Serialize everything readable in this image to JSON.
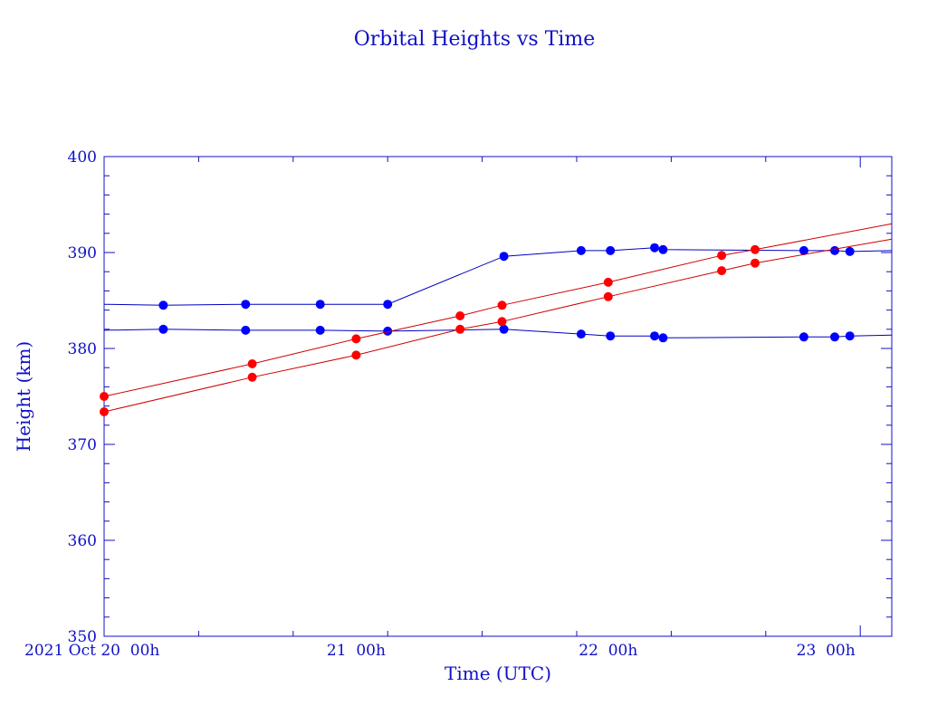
{
  "chart_data": {
    "type": "line",
    "title": "Orbital Heights vs Time",
    "xlabel": "Time (UTC)",
    "ylabel": "Height (km)",
    "x_unit": "hours since 2021 Oct 20 00h",
    "xlim": [
      -1.0,
      24.0
    ],
    "ylim": [
      350,
      400
    ],
    "y_ticks": [
      350,
      360,
      370,
      380,
      390,
      400
    ],
    "x_tick_labels": [
      {
        "x": -1.0,
        "label": "2021 Oct 20  00h"
      },
      {
        "x": 7.0,
        "label": "21  00h"
      },
      {
        "x": 15.0,
        "label": "22  00h"
      },
      {
        "x": 23.0,
        "label": "23  00h"
      }
    ],
    "grid": false,
    "colors": {
      "axes": "#1010c8",
      "series_blue": "#0000ff",
      "series_red": "#ff0000",
      "line_blue": "#0000c0",
      "line_red": "#d00000"
    },
    "series": [
      {
        "name": "blue-upper",
        "color": "#0000ff",
        "line_color": "#0000c0",
        "x": [
          -1.0,
          0.88,
          3.49,
          5.86,
          8.0,
          11.69,
          14.14,
          15.07,
          16.47,
          16.74,
          21.21,
          22.19,
          22.67,
          24.0
        ],
        "y": [
          384.6,
          384.5,
          384.6,
          384.6,
          384.6,
          389.6,
          390.2,
          390.2,
          390.5,
          390.3,
          390.2,
          390.2,
          390.1,
          390.2
        ],
        "markers": [
          false,
          true,
          true,
          true,
          true,
          true,
          true,
          true,
          true,
          true,
          true,
          true,
          true,
          false
        ]
      },
      {
        "name": "blue-lower",
        "color": "#0000ff",
        "line_color": "#0000c0",
        "x": [
          -1.0,
          0.88,
          3.49,
          5.86,
          8.0,
          11.69,
          14.14,
          15.07,
          16.47,
          16.74,
          21.21,
          22.19,
          22.67,
          24.0
        ],
        "y": [
          381.9,
          382.0,
          381.9,
          381.9,
          381.8,
          382.0,
          381.5,
          381.3,
          381.3,
          381.1,
          381.2,
          381.2,
          381.3,
          381.4
        ],
        "markers": [
          false,
          true,
          true,
          true,
          true,
          true,
          true,
          true,
          true,
          true,
          true,
          true,
          true,
          false
        ]
      },
      {
        "name": "red-upper",
        "color": "#ff0000",
        "line_color": "#d00000",
        "x": [
          -1.0,
          3.7,
          7.0,
          10.3,
          11.63,
          15.0,
          18.6,
          19.66,
          24.0
        ],
        "y": [
          375.0,
          378.4,
          381.0,
          383.4,
          384.5,
          386.9,
          389.7,
          390.3,
          393.0
        ],
        "markers": [
          true,
          true,
          true,
          true,
          true,
          true,
          true,
          true,
          false
        ]
      },
      {
        "name": "red-lower",
        "color": "#ff0000",
        "line_color": "#d00000",
        "x": [
          -1.0,
          3.7,
          7.0,
          10.3,
          11.63,
          15.0,
          18.6,
          19.66,
          24.0
        ],
        "y": [
          373.4,
          377.0,
          379.3,
          382.0,
          382.8,
          385.4,
          388.1,
          388.9,
          391.4
        ],
        "markers": [
          true,
          true,
          true,
          true,
          true,
          true,
          true,
          true,
          false
        ]
      }
    ]
  }
}
